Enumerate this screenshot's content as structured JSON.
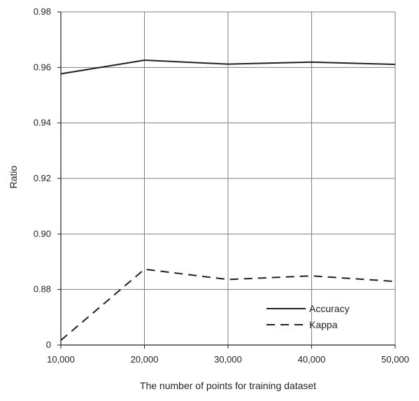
{
  "chart_data": {
    "type": "line",
    "title": "",
    "xlabel": "The number of points for training dataset",
    "ylabel": "Ratio",
    "x": [
      10000,
      20000,
      30000,
      40000,
      50000
    ],
    "x_tick_labels": [
      "10,000",
      "20,000",
      "30,000",
      "40,000",
      "50,000"
    ],
    "y_tick_labels": [
      "0",
      "0.88",
      "0.90",
      "0.92",
      "0.94",
      "0.96",
      "0.98"
    ],
    "xlim": [
      10000,
      50000
    ],
    "y_axis_note": "broken axis: bottom tick labeled 0 sits one grid step below 0.88",
    "series": [
      {
        "name": "Accuracy",
        "style": "solid",
        "values": [
          0.9577,
          0.9626,
          0.9612,
          0.9619,
          0.9611
        ]
      },
      {
        "name": "Kappa",
        "style": "dashed",
        "values": [
          0.8617,
          0.8873,
          0.8836,
          0.8849,
          0.8829
        ]
      }
    ],
    "grid": true,
    "legend_position": "bottom-right",
    "line_color": "#231f20",
    "grid_color": "#808080"
  }
}
